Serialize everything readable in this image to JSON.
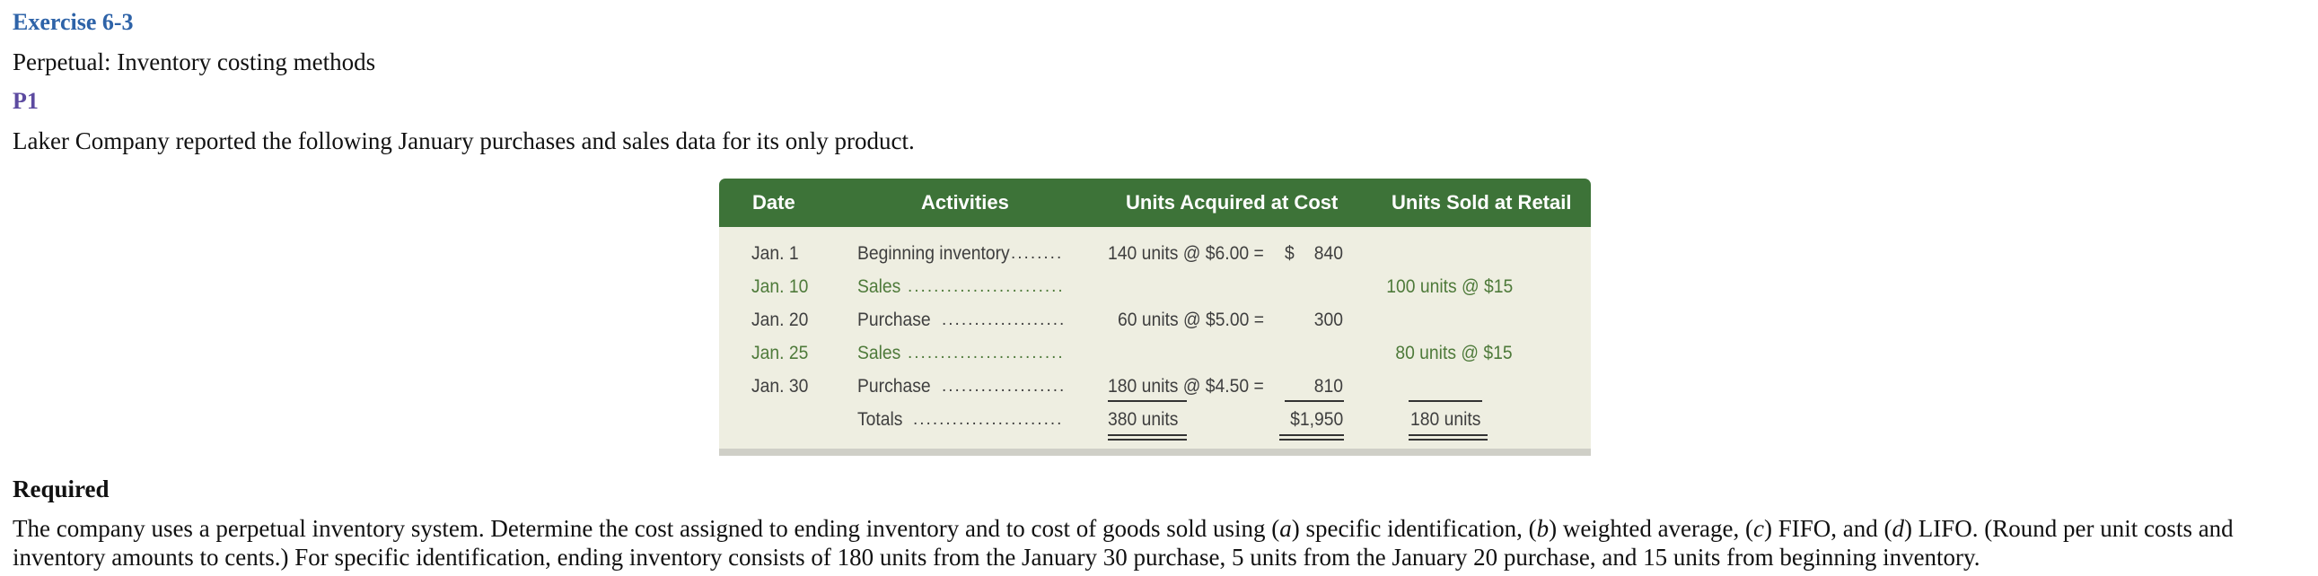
{
  "header": {
    "exercise": "Exercise 6-3",
    "subtitle": "Perpetual: Inventory costing methods",
    "objective": "P1",
    "intro": "Laker Company reported the following January purchases and sales data for its only product."
  },
  "table": {
    "columns": [
      "Date",
      "Activities",
      "Units Acquired at Cost",
      "Units Sold at Retail"
    ],
    "rows": [
      {
        "date": "Jan. 1",
        "activity": "Beginning inventory",
        "acquired": "140 units @ $6.00 =",
        "cost_sign": "$",
        "cost": "840",
        "sold": ""
      },
      {
        "date": "Jan. 10",
        "activity": "Sales",
        "acquired": "",
        "cost_sign": "",
        "cost": "",
        "sold": "100 units @ $15"
      },
      {
        "date": "Jan. 20",
        "activity": "Purchase",
        "acquired": "60 units @ $5.00 =",
        "cost_sign": "",
        "cost": "300",
        "sold": ""
      },
      {
        "date": "Jan. 25",
        "activity": "Sales",
        "acquired": "",
        "cost_sign": "",
        "cost": "",
        "sold": "80 units @ $15"
      },
      {
        "date": "Jan. 30",
        "activity": "Purchase",
        "acquired": "180 units @ $4.50 =",
        "cost_sign": "",
        "cost": "810",
        "sold": ""
      }
    ],
    "totals": {
      "activity": "Totals",
      "acquired": "380 units",
      "cost": "$1,950",
      "sold": "180 units"
    },
    "colors": {
      "header_bg": "#3d7338",
      "body_bg": "#eeeee1",
      "sales_text": "#4e7a3a"
    }
  },
  "required": {
    "heading": "Required",
    "text_parts": [
      "The company uses a perpetual inventory system. Determine the cost assigned to ending inventory and to cost of goods sold using (",
      "a",
      ") specific identification, (",
      "b",
      ") weighted average, (",
      "c",
      ") FIFO, and (",
      "d",
      ") LIFO. (Round per unit costs and inventory amounts to cents.) For specific identification, ending inventory consists of 180 units from the January 30 purchase, 5 units from the January 20 purchase, and 15 units from beginning inventory."
    ]
  }
}
